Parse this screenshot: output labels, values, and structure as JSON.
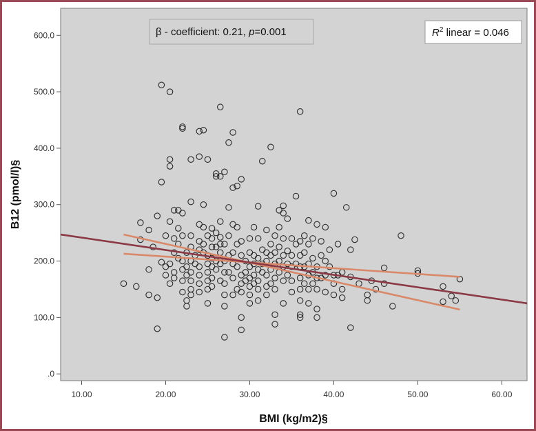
{
  "chart_data": {
    "type": "scatter",
    "xlabel": "BMI (kg/m2)§",
    "ylabel": "B12 (pmol/l)§",
    "xlim": [
      7.5,
      63
    ],
    "ylim": [
      -12,
      648
    ],
    "x_ticks": [
      10,
      20,
      30,
      40,
      50,
      60
    ],
    "x_tick_labels": [
      "10.00",
      "20.00",
      "30.00",
      "40.00",
      "50.00",
      "60.00"
    ],
    "y_ticks": [
      0,
      100,
      200,
      300,
      400,
      500,
      600
    ],
    "y_tick_labels": [
      ".0",
      "100.0",
      "200.0",
      "300.0",
      "400.0",
      "500.0",
      "600.0"
    ],
    "grid": false,
    "background": "#d3d3d3",
    "colors": {
      "fit_line": "#8b3a45",
      "ci_lines": "#d9896a",
      "frame": "#9a4a55"
    },
    "annotations": {
      "beta_prefix": "β - coefficient: 0.21, ",
      "beta_p_label": "p",
      "beta_p_value": "=0.001",
      "r2_label": "R",
      "r2_sup": "2",
      "r2_value": " linear = 0.046"
    },
    "fit_line": {
      "x": [
        7.5,
        63
      ],
      "y": [
        247,
        125
      ]
    },
    "ci_upper": {
      "x": [
        15,
        55
      ],
      "y": [
        247,
        114
      ]
    },
    "ci_lower": {
      "x": [
        15,
        55
      ],
      "y": [
        213,
        172
      ]
    },
    "points": [
      [
        15,
        160
      ],
      [
        16.5,
        155
      ],
      [
        17,
        268
      ],
      [
        17,
        238
      ],
      [
        18,
        255
      ],
      [
        18,
        140
      ],
      [
        18,
        185
      ],
      [
        18.5,
        225
      ],
      [
        19,
        280
      ],
      [
        19,
        80
      ],
      [
        19,
        135
      ],
      [
        19.5,
        512
      ],
      [
        19.5,
        340
      ],
      [
        19.5,
        198
      ],
      [
        20,
        245
      ],
      [
        20,
        190
      ],
      [
        20,
        175
      ],
      [
        20.5,
        270
      ],
      [
        20.5,
        195
      ],
      [
        20.5,
        160
      ],
      [
        20.5,
        500
      ],
      [
        20.5,
        380
      ],
      [
        20.5,
        368
      ],
      [
        21,
        290
      ],
      [
        21,
        240
      ],
      [
        21,
        215
      ],
      [
        21,
        180
      ],
      [
        21,
        170
      ],
      [
        21.5,
        290
      ],
      [
        21.5,
        258
      ],
      [
        21.5,
        230
      ],
      [
        21.5,
        205
      ],
      [
        22,
        435
      ],
      [
        22,
        438
      ],
      [
        22,
        285
      ],
      [
        22,
        245
      ],
      [
        22,
        200
      ],
      [
        22,
        185
      ],
      [
        22,
        165
      ],
      [
        22,
        145
      ],
      [
        22.5,
        215
      ],
      [
        22.5,
        190
      ],
      [
        22.5,
        175
      ],
      [
        22.5,
        130
      ],
      [
        22.5,
        120
      ],
      [
        23,
        380
      ],
      [
        23,
        305
      ],
      [
        23,
        245
      ],
      [
        23,
        225
      ],
      [
        23,
        200
      ],
      [
        23,
        180
      ],
      [
        23,
        165
      ],
      [
        23,
        150
      ],
      [
        23,
        140
      ],
      [
        23.5,
        210
      ],
      [
        23.5,
        195
      ],
      [
        24,
        430
      ],
      [
        24,
        385
      ],
      [
        24,
        265
      ],
      [
        24,
        235
      ],
      [
        24,
        220
      ],
      [
        24,
        190
      ],
      [
        24,
        175
      ],
      [
        24,
        160
      ],
      [
        24,
        145
      ],
      [
        24.5,
        432
      ],
      [
        24.5,
        300
      ],
      [
        24.5,
        260
      ],
      [
        24.5,
        230
      ],
      [
        24.5,
        215
      ],
      [
        25,
        380
      ],
      [
        25,
        245
      ],
      [
        25,
        210
      ],
      [
        25,
        195
      ],
      [
        25,
        180
      ],
      [
        25,
        165
      ],
      [
        25,
        150
      ],
      [
        25,
        125
      ],
      [
        25.5,
        258
      ],
      [
        25.5,
        240
      ],
      [
        25.5,
        225
      ],
      [
        25.5,
        205
      ],
      [
        25.5,
        190
      ],
      [
        25.5,
        170
      ],
      [
        25.5,
        155
      ],
      [
        26,
        355
      ],
      [
        26,
        350
      ],
      [
        26,
        250
      ],
      [
        26,
        225
      ],
      [
        26,
        200
      ],
      [
        26,
        185
      ],
      [
        26.5,
        473
      ],
      [
        26.5,
        350
      ],
      [
        26.5,
        270
      ],
      [
        26.5,
        242
      ],
      [
        26.5,
        230
      ],
      [
        26.5,
        215
      ],
      [
        26.5,
        195
      ],
      [
        26.5,
        165
      ],
      [
        27,
        358
      ],
      [
        27,
        230
      ],
      [
        27,
        200
      ],
      [
        27,
        180
      ],
      [
        27,
        160
      ],
      [
        27,
        140
      ],
      [
        27,
        120
      ],
      [
        27,
        65
      ],
      [
        27.5,
        410
      ],
      [
        27.5,
        295
      ],
      [
        27.5,
        245
      ],
      [
        27.5,
        210
      ],
      [
        27.5,
        180
      ],
      [
        28,
        428
      ],
      [
        28,
        330
      ],
      [
        28,
        265
      ],
      [
        28,
        215
      ],
      [
        28,
        195
      ],
      [
        28,
        170
      ],
      [
        28,
        140
      ],
      [
        28.5,
        333
      ],
      [
        28.5,
        260
      ],
      [
        28.5,
        230
      ],
      [
        28.5,
        190
      ],
      [
        28.5,
        150
      ],
      [
        29,
        345
      ],
      [
        29,
        235
      ],
      [
        29,
        210
      ],
      [
        29,
        175
      ],
      [
        29,
        160
      ],
      [
        29,
        145
      ],
      [
        29,
        100
      ],
      [
        29,
        78
      ],
      [
        29.5,
        200
      ],
      [
        29.5,
        180
      ],
      [
        29.5,
        165
      ],
      [
        30,
        240
      ],
      [
        30,
        215
      ],
      [
        30,
        190
      ],
      [
        30,
        170
      ],
      [
        30,
        155
      ],
      [
        30,
        140
      ],
      [
        30,
        125
      ],
      [
        30.5,
        260
      ],
      [
        30.5,
        210
      ],
      [
        30.5,
        195
      ],
      [
        30.5,
        175
      ],
      [
        30.5,
        160
      ],
      [
        31,
        297
      ],
      [
        31,
        240
      ],
      [
        31,
        205
      ],
      [
        31,
        185
      ],
      [
        31,
        165
      ],
      [
        31,
        150
      ],
      [
        31,
        130
      ],
      [
        31.5,
        377
      ],
      [
        31.5,
        220
      ],
      [
        31.5,
        195
      ],
      [
        31.5,
        180
      ],
      [
        32,
        255
      ],
      [
        32,
        215
      ],
      [
        32,
        200
      ],
      [
        32,
        175
      ],
      [
        32,
        155
      ],
      [
        32,
        140
      ],
      [
        32.5,
        402
      ],
      [
        32.5,
        230
      ],
      [
        32.5,
        210
      ],
      [
        32.5,
        185
      ],
      [
        32.5,
        160
      ],
      [
        33,
        245
      ],
      [
        33,
        215
      ],
      [
        33,
        195
      ],
      [
        33,
        170
      ],
      [
        33,
        150
      ],
      [
        33,
        105
      ],
      [
        33,
        88
      ],
      [
        33.5,
        290
      ],
      [
        33.5,
        260
      ],
      [
        33.5,
        225
      ],
      [
        33.5,
        200
      ],
      [
        33.5,
        180
      ],
      [
        34,
        298
      ],
      [
        34,
        285
      ],
      [
        34,
        240
      ],
      [
        34,
        210
      ],
      [
        34,
        190
      ],
      [
        34,
        165
      ],
      [
        34,
        125
      ],
      [
        34.5,
        275
      ],
      [
        34.5,
        218
      ],
      [
        34.5,
        195
      ],
      [
        34.5,
        175
      ],
      [
        35,
        240
      ],
      [
        35,
        210
      ],
      [
        35,
        190
      ],
      [
        35,
        165
      ],
      [
        35,
        145
      ],
      [
        35.5,
        315
      ],
      [
        35.5,
        230
      ],
      [
        35.5,
        195
      ],
      [
        36,
        465
      ],
      [
        36,
        235
      ],
      [
        36,
        210
      ],
      [
        36,
        190
      ],
      [
        36,
        170
      ],
      [
        36,
        150
      ],
      [
        36,
        130
      ],
      [
        36,
        105
      ],
      [
        36,
        100
      ],
      [
        36.5,
        245
      ],
      [
        36.5,
        215
      ],
      [
        36.5,
        190
      ],
      [
        36.5,
        160
      ],
      [
        37,
        272
      ],
      [
        37,
        230
      ],
      [
        37,
        195
      ],
      [
        37,
        175
      ],
      [
        37,
        150
      ],
      [
        37,
        125
      ],
      [
        37.5,
        240
      ],
      [
        37.5,
        205
      ],
      [
        37.5,
        180
      ],
      [
        37.5,
        160
      ],
      [
        38,
        265
      ],
      [
        38,
        190
      ],
      [
        38,
        170
      ],
      [
        38,
        150
      ],
      [
        38,
        115
      ],
      [
        38,
        100
      ],
      [
        38.5,
        235
      ],
      [
        38.5,
        210
      ],
      [
        38.5,
        170
      ],
      [
        39,
        260
      ],
      [
        39,
        200
      ],
      [
        39,
        175
      ],
      [
        39,
        145
      ],
      [
        39.5,
        220
      ],
      [
        39.5,
        190
      ],
      [
        40,
        320
      ],
      [
        40,
        175
      ],
      [
        40,
        160
      ],
      [
        40,
        140
      ],
      [
        40.5,
        230
      ],
      [
        40.5,
        175
      ],
      [
        41,
        180
      ],
      [
        41,
        150
      ],
      [
        41,
        135
      ],
      [
        41.5,
        295
      ],
      [
        42,
        220
      ],
      [
        42,
        172
      ],
      [
        42,
        82
      ],
      [
        42.5,
        238
      ],
      [
        43,
        160
      ],
      [
        44,
        140
      ],
      [
        44,
        130
      ],
      [
        44.5,
        165
      ],
      [
        45,
        150
      ],
      [
        46,
        188
      ],
      [
        46,
        160
      ],
      [
        47,
        120
      ],
      [
        48,
        245
      ],
      [
        50,
        183
      ],
      [
        50,
        178
      ],
      [
        53,
        155
      ],
      [
        53,
        128
      ],
      [
        54,
        138
      ],
      [
        54.5,
        130
      ],
      [
        55,
        168
      ]
    ]
  }
}
